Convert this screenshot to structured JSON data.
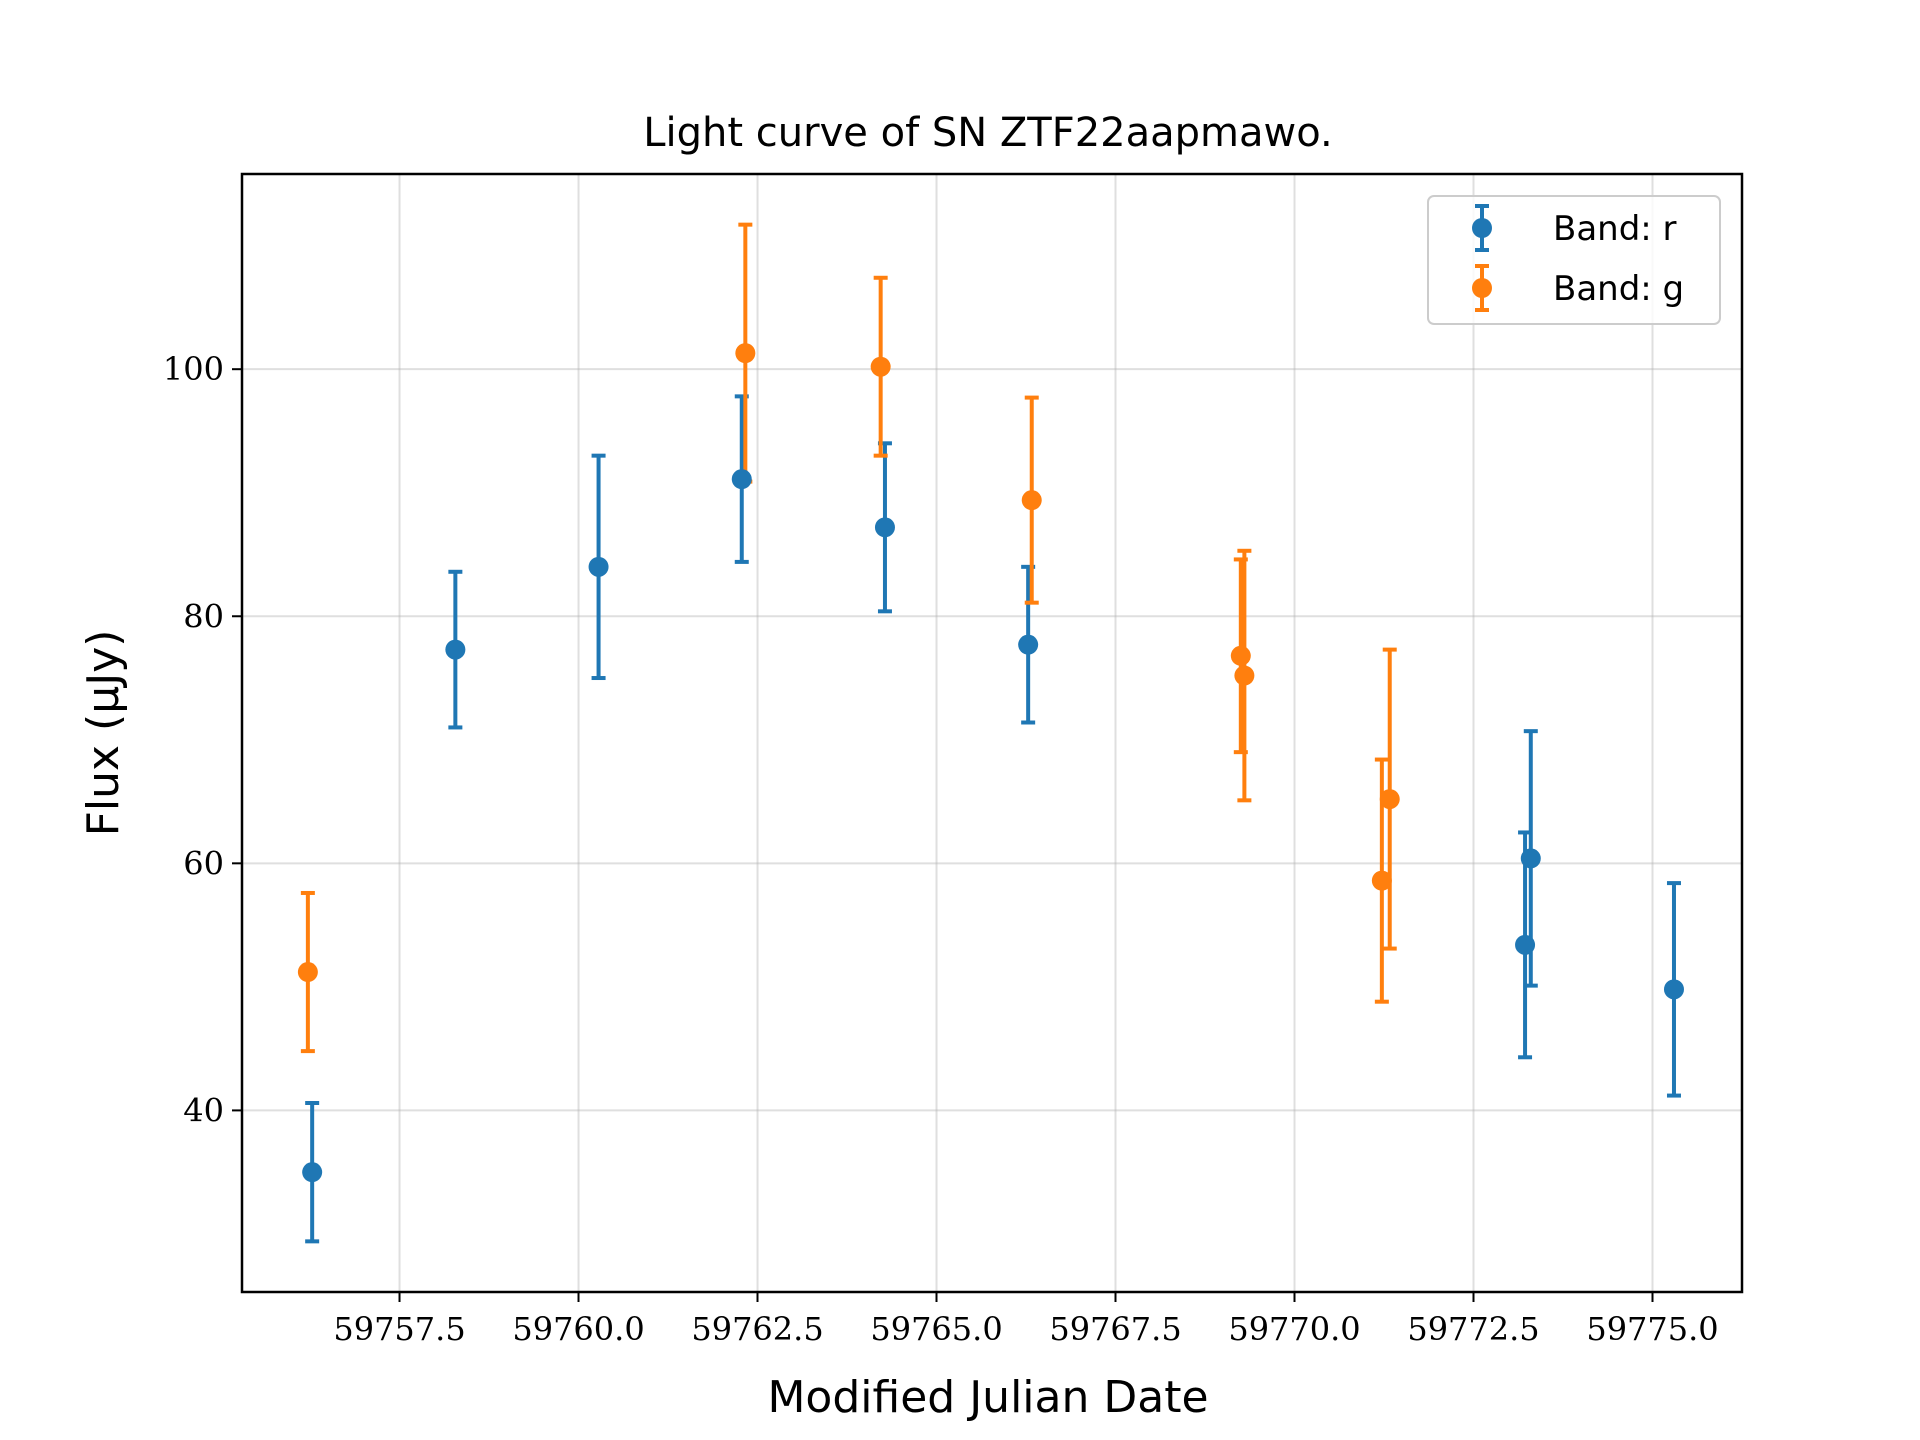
{
  "chart_data": {
    "type": "scatter",
    "title": "Light curve of SN ZTF22aapmawo.",
    "xlabel": "Modified Julian Date",
    "ylabel": "Flux (μJy)",
    "xlim": [
      59755.3,
      59776.25
    ],
    "ylim": [
      25.3,
      115.8
    ],
    "xticks": [
      59757.5,
      59760.0,
      59762.5,
      59765.0,
      59767.5,
      59770.0,
      59772.5,
      59775.0
    ],
    "xtick_labels": [
      "59757.5",
      "59760.0",
      "59762.5",
      "59765.0",
      "59767.5",
      "59770.0",
      "59772.5",
      "59775.0"
    ],
    "yticks": [
      40,
      60,
      80,
      100
    ],
    "ytick_labels": [
      "40",
      "60",
      "80",
      "100"
    ],
    "grid": true,
    "legend_position": "top-right",
    "series": [
      {
        "name": "Band: r",
        "color": "#1f77b4",
        "points": [
          {
            "x": 59756.28,
            "y": 35.0,
            "err": 5.6
          },
          {
            "x": 59758.28,
            "y": 77.3,
            "err": 6.3
          },
          {
            "x": 59760.28,
            "y": 84.0,
            "err": 9.0
          },
          {
            "x": 59762.28,
            "y": 91.1,
            "err": 6.7
          },
          {
            "x": 59764.28,
            "y": 87.2,
            "err": 6.8
          },
          {
            "x": 59766.28,
            "y": 77.7,
            "err": 6.3
          },
          {
            "x": 59773.22,
            "y": 53.4,
            "err": 9.1
          },
          {
            "x": 59773.3,
            "y": 60.4,
            "err": 10.3
          },
          {
            "x": 59775.3,
            "y": 49.8,
            "err": 8.6
          }
        ]
      },
      {
        "name": "Band: g",
        "color": "#ff7f0e",
        "points": [
          {
            "x": 59756.22,
            "y": 51.2,
            "err": 6.4
          },
          {
            "x": 59762.33,
            "y": 101.3,
            "err": 10.4
          },
          {
            "x": 59764.22,
            "y": 100.2,
            "err": 7.2
          },
          {
            "x": 59766.33,
            "y": 89.4,
            "err": 8.3
          },
          {
            "x": 59769.25,
            "y": 76.8,
            "err": 7.8
          },
          {
            "x": 59769.3,
            "y": 75.2,
            "err": 10.1
          },
          {
            "x": 59771.22,
            "y": 58.6,
            "err": 9.8
          },
          {
            "x": 59771.33,
            "y": 65.2,
            "err": 12.1
          }
        ]
      }
    ]
  }
}
